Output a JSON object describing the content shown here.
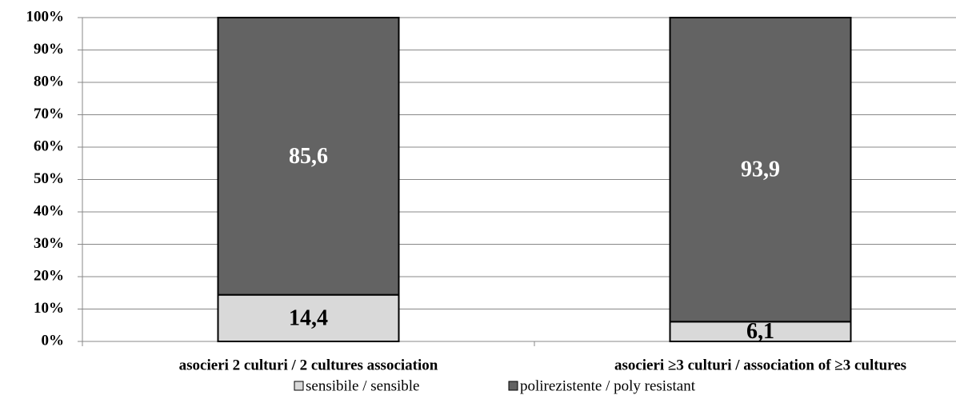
{
  "chart_data": {
    "type": "stacked_bar",
    "categories": [
      "asocieri 2 culturi / 2 cultures association",
      "asocieri ≥3 culturi / association of  ≥3 cultures"
    ],
    "series": [
      {
        "name": "sensibile / sensible",
        "color": "#d9d9d9",
        "values": [
          14.4,
          6.1
        ],
        "value_labels": [
          "14,4",
          "6,1"
        ]
      },
      {
        "name": "polirezistente / poly resistant",
        "color": "#636363",
        "values": [
          85.6,
          93.9
        ],
        "value_labels": [
          "85,6",
          "93,9"
        ]
      }
    ],
    "ylim": [
      0,
      100
    ],
    "yticks": [
      {
        "value": 0,
        "label": "0%"
      },
      {
        "value": 10,
        "label": "10%"
      },
      {
        "value": 20,
        "label": "20%"
      },
      {
        "value": 30,
        "label": "30%"
      },
      {
        "value": 40,
        "label": "40%"
      },
      {
        "value": 50,
        "label": "50%"
      },
      {
        "value": 60,
        "label": "60%"
      },
      {
        "value": 70,
        "label": "70%"
      },
      {
        "value": 80,
        "label": "80%"
      },
      {
        "value": 90,
        "label": "90%"
      },
      {
        "value": 100,
        "label": "100%"
      }
    ],
    "grid": true
  }
}
